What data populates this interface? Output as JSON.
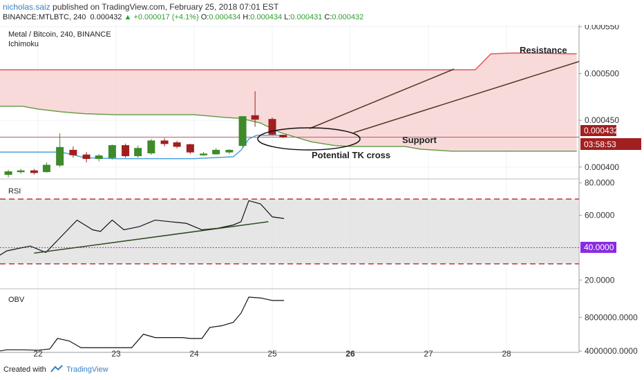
{
  "header": {
    "author": "nicholas.saiz",
    "published": " published on TradingView.com, February 25, 2018 07:01 EST",
    "symbol": "BINANCE:MTLBTC, 240",
    "last": "0.000432",
    "change": "▲ +0.000017 (+4.1%)",
    "o_label": "O:",
    "o": "0.000434",
    "h_label": "H:",
    "h": "0.000434",
    "l_label": "L:",
    "l": "0.000431",
    "c_label": "C:",
    "c": "0.000432"
  },
  "footer": {
    "created": "Created with",
    "brand": "TradingView"
  },
  "colors": {
    "bull": "#3f8a2b",
    "bear": "#a11f1f",
    "cloud": "#f7d3d3",
    "span_a": "#e05858",
    "span_b": "#6a9e4a",
    "tenkan": "#4aa3df",
    "price_line": "#b06060",
    "rsi_band": "#dcdcdc",
    "rsi_level": "#b03a3a",
    "rsi_mid": "#8a2be2",
    "trend": "#4a3a1f"
  },
  "chart_data": [
    {
      "type": "candlestick",
      "title": "Metal / Bitcoin, 240, BINANCE",
      "indicator": "Ichimoku",
      "x_ticks": [
        "22",
        "23",
        "24",
        "25",
        "26",
        "27",
        "28"
      ],
      "y_ticks": [
        "0.000550",
        "0.000500",
        "0.000450",
        "0.000400"
      ],
      "ylim": [
        0.000388,
        0.000552
      ],
      "price_badge": "0.000432",
      "countdown_badge": "03:58:53",
      "candles": [
        {
          "x": 21.62,
          "o": 0.000392,
          "h": 0.000397,
          "l": 0.000389,
          "c": 0.000395
        },
        {
          "x": 21.78,
          "o": 0.000395,
          "h": 0.000398,
          "l": 0.000393,
          "c": 0.000396
        },
        {
          "x": 21.95,
          "o": 0.000396,
          "h": 0.000398,
          "l": 0.000392,
          "c": 0.000394
        },
        {
          "x": 22.11,
          "o": 0.000395,
          "h": 0.000405,
          "l": 0.000394,
          "c": 0.000402
        },
        {
          "x": 22.28,
          "o": 0.000402,
          "h": 0.000436,
          "l": 0.0004,
          "c": 0.000421
        },
        {
          "x": 22.45,
          "o": 0.000418,
          "h": 0.000422,
          "l": 0.00041,
          "c": 0.000413
        },
        {
          "x": 22.62,
          "o": 0.000413,
          "h": 0.000416,
          "l": 0.000405,
          "c": 0.000409
        },
        {
          "x": 22.78,
          "o": 0.000409,
          "h": 0.000414,
          "l": 0.000406,
          "c": 0.000412
        },
        {
          "x": 22.95,
          "o": 0.00041,
          "h": 0.000424,
          "l": 0.000408,
          "c": 0.000423
        },
        {
          "x": 23.12,
          "o": 0.000423,
          "h": 0.000425,
          "l": 0.00041,
          "c": 0.000412
        },
        {
          "x": 23.28,
          "o": 0.000412,
          "h": 0.000423,
          "l": 0.00041,
          "c": 0.00042
        },
        {
          "x": 23.45,
          "o": 0.000415,
          "h": 0.00043,
          "l": 0.000413,
          "c": 0.000428
        },
        {
          "x": 23.62,
          "o": 0.000428,
          "h": 0.000431,
          "l": 0.000422,
          "c": 0.000425
        },
        {
          "x": 23.78,
          "o": 0.000426,
          "h": 0.000428,
          "l": 0.00042,
          "c": 0.000422
        },
        {
          "x": 23.95,
          "o": 0.000424,
          "h": 0.000425,
          "l": 0.000414,
          "c": 0.000416
        },
        {
          "x": 24.12,
          "o": 0.000414,
          "h": 0.000416,
          "l": 0.000412,
          "c": 0.000414
        },
        {
          "x": 24.28,
          "o": 0.000414,
          "h": 0.00042,
          "l": 0.000413,
          "c": 0.000418
        },
        {
          "x": 24.45,
          "o": 0.000416,
          "h": 0.000419,
          "l": 0.000414,
          "c": 0.000418
        },
        {
          "x": 24.62,
          "o": 0.000423,
          "h": 0.000454,
          "l": 0.000421,
          "c": 0.000454
        },
        {
          "x": 24.78,
          "o": 0.000455,
          "h": 0.000481,
          "l": 0.000443,
          "c": 0.000451
        },
        {
          "x": 25.0,
          "o": 0.000451,
          "h": 0.000453,
          "l": 0.000434,
          "c": 0.000435
        },
        {
          "x": 25.14,
          "o": 0.000434,
          "h": 0.000434,
          "l": 0.000431,
          "c": 0.000432
        }
      ],
      "ichimoku": {
        "span_a": {
          "x": [
            21.5,
            22.3,
            27.6,
            27.8,
            28.1,
            28.9
          ],
          "y": [
            0.000504,
            0.000504,
            0.000504,
            0.000521,
            0.000522,
            0.000521
          ]
        },
        "span_b": {
          "x": [
            21.5,
            21.8,
            22.0,
            22.3,
            22.6,
            23.0,
            24.0,
            24.4,
            24.6,
            24.85,
            25.1,
            25.5,
            25.8,
            26.0,
            26.4,
            26.7,
            26.9,
            27.3,
            27.6,
            28.0,
            28.9
          ],
          "y": [
            0.000465,
            0.000465,
            0.000462,
            0.000459,
            0.000457,
            0.000456,
            0.000456,
            0.000453,
            0.000452,
            0.000447,
            0.000437,
            0.000427,
            0.000423,
            0.000422,
            0.000422,
            0.000422,
            0.000419,
            0.000417,
            0.000417,
            0.000417,
            0.000417
          ]
        },
        "tenkan": {
          "x": [
            21.5,
            21.9,
            22.0,
            22.3,
            22.6,
            23.0,
            23.5,
            24.0,
            24.5,
            24.6,
            24.7,
            24.8,
            25.0,
            25.15
          ],
          "y": [
            0.000416,
            0.000416,
            0.000416,
            0.000416,
            0.00041,
            0.000409,
            0.000409,
            0.000409,
            0.000411,
            0.000418,
            0.00043,
            0.000434,
            0.000434,
            0.000434
          ]
        }
      },
      "annotations": [
        "Resistance",
        "Support",
        "Potential TK cross"
      ]
    },
    {
      "type": "line",
      "title": "RSI",
      "y_ticks": [
        "80.0000",
        "60.0000",
        "40.0000",
        "20.0000"
      ],
      "ylim": [
        15,
        82
      ],
      "levels": [
        70,
        30
      ],
      "mid_level": 40,
      "mid_badge": "40.0000",
      "series": [
        {
          "x": [
            21.5,
            21.6,
            21.7,
            21.9,
            22.1,
            22.3,
            22.5,
            22.7,
            22.8,
            22.95,
            23.1,
            23.3,
            23.5,
            23.7,
            23.9,
            24.1,
            24.3,
            24.5,
            24.6,
            24.7,
            24.85,
            25.0,
            25.15
          ],
          "y": [
            35,
            38,
            39,
            41,
            37,
            47,
            57,
            51,
            50,
            57,
            51,
            53,
            57,
            56,
            55,
            51,
            52,
            54,
            56,
            69,
            67,
            59,
            58
          ]
        }
      ],
      "trendline": {
        "x": [
          21.95,
          24.95
        ],
        "y": [
          36.6,
          56
        ]
      }
    },
    {
      "type": "line",
      "title": "OBV",
      "y_ticks": [
        "8000000.0000",
        "4000000.0000"
      ],
      "ylim": [
        3850000,
        11300000
      ],
      "series": [
        {
          "x": [
            21.5,
            21.6,
            21.8,
            22.0,
            22.15,
            22.25,
            22.4,
            22.55,
            22.65,
            22.85,
            23.0,
            23.15,
            23.2,
            23.35,
            23.5,
            23.7,
            23.85,
            23.95,
            24.1,
            24.2,
            24.35,
            24.5,
            24.6,
            24.7,
            24.85,
            25.0,
            25.15
          ],
          "y": [
            4000000,
            4150000,
            4150000,
            4100000,
            4250000,
            5500000,
            5200000,
            4400000,
            4400000,
            4400000,
            4400000,
            4400000,
            4400000,
            6000000,
            5600000,
            5600000,
            5600000,
            5500000,
            5500000,
            6800000,
            7000000,
            7400000,
            8500000,
            10400000,
            10300000,
            10000000,
            10000000
          ]
        }
      ]
    }
  ]
}
